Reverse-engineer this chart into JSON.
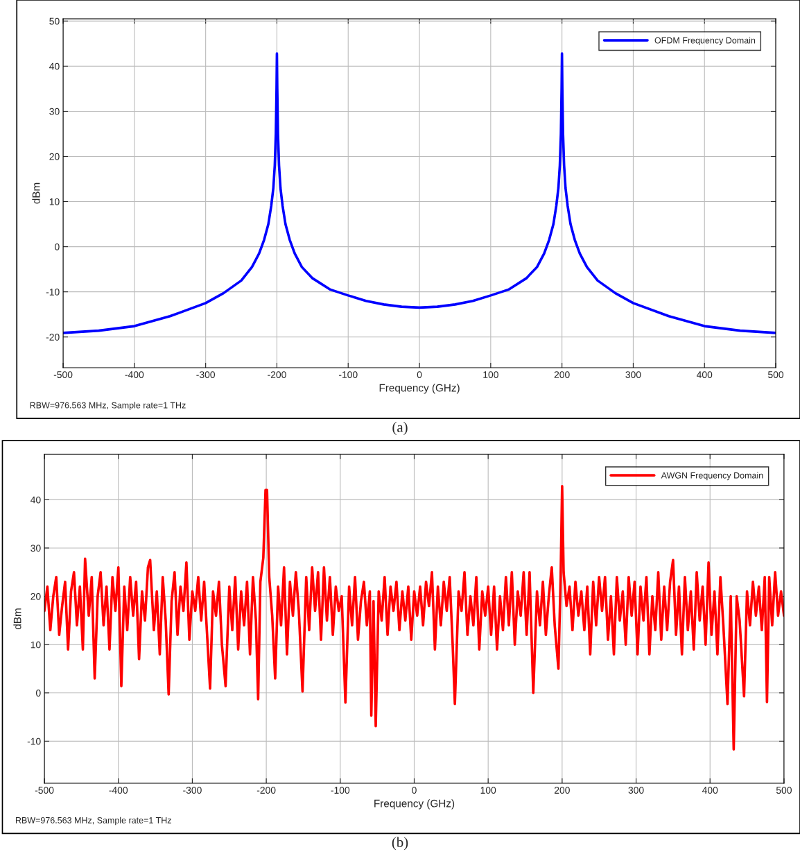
{
  "chart_data": [
    {
      "type": "line",
      "xlabel": "Frequency (GHz)",
      "ylabel": "dBm",
      "xlim": [
        -500,
        500
      ],
      "ylim": [
        -26.8,
        50.5
      ],
      "xticks": [
        -500,
        -400,
        -300,
        -200,
        -100,
        0,
        100,
        200,
        300,
        400,
        500
      ],
      "yticks": [
        -20,
        -10,
        0,
        10,
        20,
        30,
        40,
        50
      ],
      "grid": true,
      "legend": "top right",
      "marker": "none",
      "line_style": "solid",
      "series": [
        {
          "name": "OFDM Frequency Domain",
          "color": "#0000ff",
          "x": [
            -500,
            -450,
            -400,
            -350,
            -300,
            -275,
            -250,
            -235,
            -225,
            -218,
            -212,
            -208,
            -205,
            -203,
            -201.5,
            -200.5,
            -200,
            -199.5,
            -198.5,
            -197,
            -195,
            -192,
            -188,
            -182,
            -175,
            -165,
            -150,
            -125,
            -100,
            -75,
            -50,
            -25,
            0,
            25,
            50,
            75,
            100,
            125,
            150,
            165,
            175,
            182,
            188,
            192,
            195,
            197,
            198.5,
            199.5,
            200,
            200.5,
            201.5,
            203,
            205,
            208,
            212,
            218,
            225,
            235,
            250,
            275,
            300,
            350,
            400,
            450,
            500
          ],
          "values": [
            -19.1,
            -18.6,
            -17.6,
            -15.4,
            -12.5,
            -10.3,
            -7.5,
            -4.5,
            -1.5,
            1.5,
            5,
            9,
            13,
            18,
            25,
            35,
            42.8,
            35,
            25,
            18,
            13,
            9,
            5,
            1.5,
            -1.5,
            -4.5,
            -7,
            -9.5,
            -10.8,
            -12,
            -12.8,
            -13.3,
            -13.5,
            -13.3,
            -12.8,
            -12,
            -10.8,
            -9.5,
            -7,
            -4.5,
            -1.5,
            1.5,
            5,
            9,
            13,
            18,
            25,
            35,
            42.8,
            35,
            25,
            18,
            13,
            9,
            5,
            1.5,
            -1.5,
            -4.5,
            -7.5,
            -10.3,
            -12.5,
            -15.4,
            -17.6,
            -18.6,
            -19.1
          ]
        }
      ],
      "annotations": [
        "RBW=976.563 MHz, Sample rate=1 THz",
        "(a)"
      ]
    },
    {
      "type": "line",
      "xlabel": "Frequency (GHz)",
      "ylabel": "dBm",
      "xlim": [
        -500,
        500
      ],
      "ylim": [
        -18.7,
        49.4
      ],
      "xticks": [
        -500,
        -400,
        -300,
        -200,
        -100,
        0,
        100,
        200,
        300,
        400,
        500
      ],
      "yticks": [
        -10,
        0,
        10,
        20,
        30,
        40
      ],
      "grid": true,
      "legend": "top right",
      "marker": "none",
      "line_style": "solid",
      "series": [
        {
          "name": "AWGN Frequency Domain",
          "color": "#ff0000",
          "x": [
            -500,
            -496,
            -492,
            -488,
            -484,
            -480,
            -476,
            -472,
            -468,
            -464,
            -460,
            -456,
            -452,
            -448,
            -445,
            -440,
            -436,
            -432,
            -428,
            -424,
            -420,
            -416,
            -412,
            -408,
            -404,
            -400,
            -396,
            -392,
            -388,
            -384,
            -380,
            -376,
            -372,
            -368,
            -364,
            -360,
            -357,
            -352,
            -348,
            -344,
            -340,
            -336,
            -332,
            -328,
            -324,
            -320,
            -316,
            -312,
            -308,
            -304,
            -300,
            -296,
            -292,
            -288,
            -284,
            -280,
            -276,
            -272,
            -268,
            -264,
            -260,
            -255,
            -250,
            -246,
            -242,
            -238,
            -234,
            -230,
            -226,
            -222,
            -218,
            -214,
            -211,
            -208,
            -204,
            -201,
            -199,
            -196,
            -192,
            -188,
            -184,
            -180,
            -176,
            -172,
            -168,
            -164,
            -160,
            -156,
            -151,
            -146,
            -142,
            -138,
            -134,
            -130,
            -126,
            -122,
            -118,
            -114,
            -110,
            -106,
            -102,
            -98,
            -93,
            -88,
            -84,
            -80,
            -76,
            -72,
            -68,
            -64,
            -60,
            -58,
            -55,
            -52,
            -48,
            -44,
            -40,
            -36,
            -32,
            -28,
            -24,
            -20,
            -16,
            -12,
            -8,
            -4,
            0,
            4,
            8,
            12,
            16,
            20,
            24,
            28,
            32,
            36,
            40,
            44,
            48,
            52,
            55,
            60,
            64,
            68,
            72,
            76,
            80,
            84,
            88,
            92,
            96,
            100,
            104,
            108,
            112,
            116,
            120,
            124,
            128,
            132,
            136,
            140,
            144,
            148,
            152,
            156,
            161,
            166,
            170,
            174,
            178,
            182,
            186,
            190,
            195,
            198,
            200,
            202,
            206,
            210,
            214,
            218,
            222,
            226,
            230,
            234,
            238,
            242,
            246,
            250,
            254,
            258,
            262,
            266,
            270,
            274,
            278,
            282,
            286,
            290,
            294,
            298,
            302,
            306,
            310,
            314,
            318,
            322,
            326,
            330,
            334,
            338,
            342,
            346,
            350,
            354,
            358,
            362,
            366,
            370,
            374,
            378,
            382,
            386,
            390,
            394,
            398,
            402,
            406,
            410,
            414,
            418,
            423.6,
            428,
            432,
            436,
            440,
            446,
            450,
            454,
            458,
            462,
            466,
            470,
            474,
            477,
            480,
            484,
            488,
            492,
            496,
            500
          ],
          "values": [
            17,
            22,
            13,
            20,
            24,
            12,
            18,
            23,
            9,
            21,
            25,
            14,
            22,
            9,
            27.8,
            16,
            24,
            3,
            20,
            25,
            14,
            22,
            9,
            24,
            17,
            26,
            1.4,
            22,
            13,
            24,
            16,
            23,
            7,
            21,
            15,
            26,
            27.5,
            13,
            21,
            8,
            24,
            15,
            -0.3,
            19,
            25,
            12,
            22,
            17,
            27,
            11,
            21,
            17,
            24,
            15,
            23,
            12,
            0.9,
            21,
            16,
            23,
            10,
            1.4,
            22,
            13,
            24,
            9,
            21,
            14,
            23,
            8,
            24,
            15,
            -1.3,
            23,
            28,
            42,
            42,
            24,
            16,
            3,
            22,
            14,
            26,
            8,
            23,
            16,
            25,
            17,
            0.3,
            24,
            13,
            26,
            17,
            25,
            11,
            26,
            15,
            24,
            12,
            22,
            17,
            20,
            -2,
            22,
            14,
            24,
            11,
            19,
            23,
            14,
            21,
            -4.7,
            19,
            -6.9,
            21,
            15,
            24,
            12,
            22,
            17,
            23,
            13,
            21,
            15,
            22,
            11,
            21,
            16,
            22,
            14,
            23,
            18,
            25,
            9,
            22,
            14,
            23,
            17,
            24,
            10,
            -2.3,
            21,
            17,
            25,
            12,
            20,
            14,
            24,
            9,
            21,
            16,
            22,
            12,
            22,
            9,
            20,
            13,
            24,
            14,
            25,
            10,
            21,
            16,
            25,
            12,
            25,
            0,
            21,
            14,
            23,
            12,
            20,
            26,
            14,
            5,
            24,
            42.8,
            25,
            18,
            22,
            13,
            23,
            16,
            21,
            13,
            22,
            8,
            23,
            14,
            24,
            17,
            24,
            11,
            20,
            8,
            24,
            15,
            21,
            10,
            24,
            16,
            23,
            8,
            22,
            15,
            24,
            8,
            20,
            13,
            25,
            11,
            22,
            13,
            23,
            27.5,
            12,
            22,
            8,
            24,
            13,
            21,
            9,
            25,
            15,
            22,
            10,
            27,
            12,
            21,
            8,
            24,
            14,
            -2.3,
            20,
            -11.7,
            20,
            15,
            -0.7,
            21,
            14,
            23,
            16,
            22,
            13,
            24,
            -1.9,
            24,
            14,
            25,
            16,
            21,
            16
          ]
        }
      ],
      "annotations": [
        "RBW=976.563 MHz, Sample rate=1 THz",
        "(b)"
      ]
    }
  ]
}
